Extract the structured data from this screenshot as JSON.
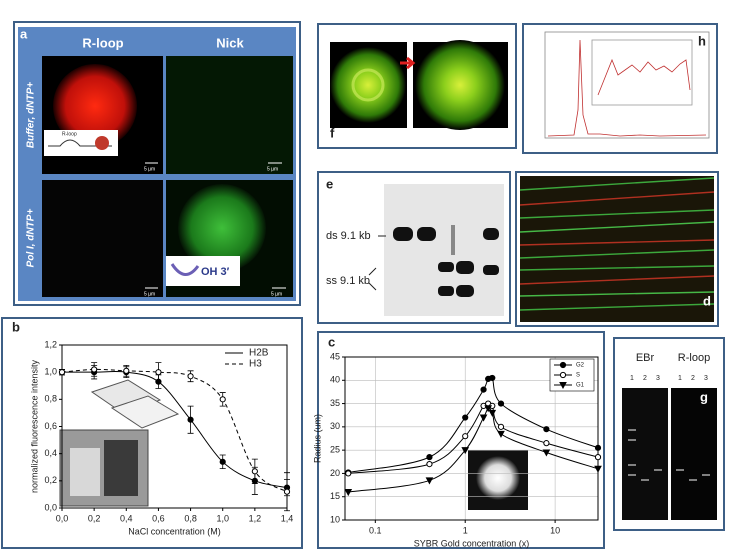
{
  "panels": {
    "a": {
      "label": "a",
      "col1": "R-loop",
      "col2": "Nick",
      "row1": "Buffer, dNTP+",
      "row2": "Pol I, dNTP+",
      "scale": "5 µm",
      "inset_rloop": "R-loop",
      "inset_oh": "OH 3′"
    },
    "f": {
      "label": "f"
    },
    "h": {
      "label": "h"
    },
    "e": {
      "label": "e",
      "ds": "ds 9.1 kb",
      "ss": "ss 9.1 kb"
    },
    "d": {
      "label": "d"
    },
    "g": {
      "label": "g",
      "ebr": "EBr",
      "rloop": "R-loop",
      "lanes": [
        "1",
        "2",
        "3"
      ]
    }
  },
  "chart_data": [
    {
      "type": "line",
      "panel_label": "b",
      "xlabel": "NaCl concentration (M)",
      "ylabel": "normalized fluorescence intensity",
      "xlim": [
        0,
        1.4
      ],
      "xticks": [
        {
          "value": 0,
          "label": "0,0"
        },
        {
          "value": 0.2,
          "label": "0,2"
        },
        {
          "value": 0.4,
          "label": "0,4"
        },
        {
          "value": 0.6,
          "label": "0,6"
        },
        {
          "value": 0.8,
          "label": "0,8"
        },
        {
          "value": 1.0,
          "label": "1,0"
        },
        {
          "value": 1.2,
          "label": "1,2"
        },
        {
          "value": 1.4,
          "label": "1,4"
        }
      ],
      "ylim": [
        0,
        1.2
      ],
      "yticks": [
        {
          "value": 0,
          "label": "0,0"
        },
        {
          "value": 0.2,
          "label": "0,2"
        },
        {
          "value": 0.4,
          "label": "0,4"
        },
        {
          "value": 0.6,
          "label": "0,6"
        },
        {
          "value": 0.8,
          "label": "0,8"
        },
        {
          "value": 1.0,
          "label": "1,0"
        },
        {
          "value": 1.2,
          "label": "1,2"
        }
      ],
      "grid": false,
      "legend": "upper right",
      "x": [
        0,
        0.2,
        0.4,
        0.6,
        0.8,
        1.0,
        1.2,
        1.4
      ],
      "series": [
        {
          "name": "H2B",
          "color": "#000000",
          "dashed": false,
          "marker": "filled-circle",
          "values": [
            1.0,
            1.0,
            1.0,
            0.93,
            0.65,
            0.34,
            0.2,
            0.15
          ],
          "errors": [
            0.02,
            0.05,
            0.04,
            0.05,
            0.1,
            0.05,
            0.1,
            0.06
          ]
        },
        {
          "name": "H3",
          "color": "#000000",
          "dashed": true,
          "marker": "open-circle",
          "values": [
            1.0,
            1.02,
            1.01,
            1.0,
            0.97,
            0.8,
            0.27,
            0.12
          ],
          "errors": [
            0.02,
            0.05,
            0.04,
            0.07,
            0.04,
            0.05,
            0.09,
            0.14
          ]
        }
      ]
    },
    {
      "type": "line",
      "panel_label": "c",
      "xlabel": "SYBR Gold concentration (x)",
      "ylabel": "Radius (um)",
      "xscale": "log",
      "xlim": [
        0.046,
        30
      ],
      "xticks": [
        0.1,
        1,
        10
      ],
      "ylim": [
        10,
        45
      ],
      "yticks": [
        10,
        15,
        20,
        25,
        30,
        35,
        40,
        45
      ],
      "grid": true,
      "legend": "upper right",
      "x": [
        0.05,
        0.4,
        1,
        1.6,
        1.8,
        2,
        2.5,
        8,
        30
      ],
      "series": [
        {
          "name": "G2",
          "color": "#000000",
          "marker": "filled-circle",
          "values": [
            20.2,
            23.5,
            32,
            38,
            40.3,
            40.5,
            35,
            29.5,
            25.5
          ]
        },
        {
          "name": "S",
          "color": "#000000",
          "marker": "open-circle",
          "values": [
            20,
            22,
            28,
            34.5,
            35,
            34.5,
            30,
            26.5,
            23.5
          ]
        },
        {
          "name": "G1",
          "color": "#000000",
          "marker": "triangle-down",
          "values": [
            16,
            18.5,
            25,
            32,
            34,
            33,
            28.5,
            24.5,
            21
          ]
        }
      ]
    }
  ]
}
